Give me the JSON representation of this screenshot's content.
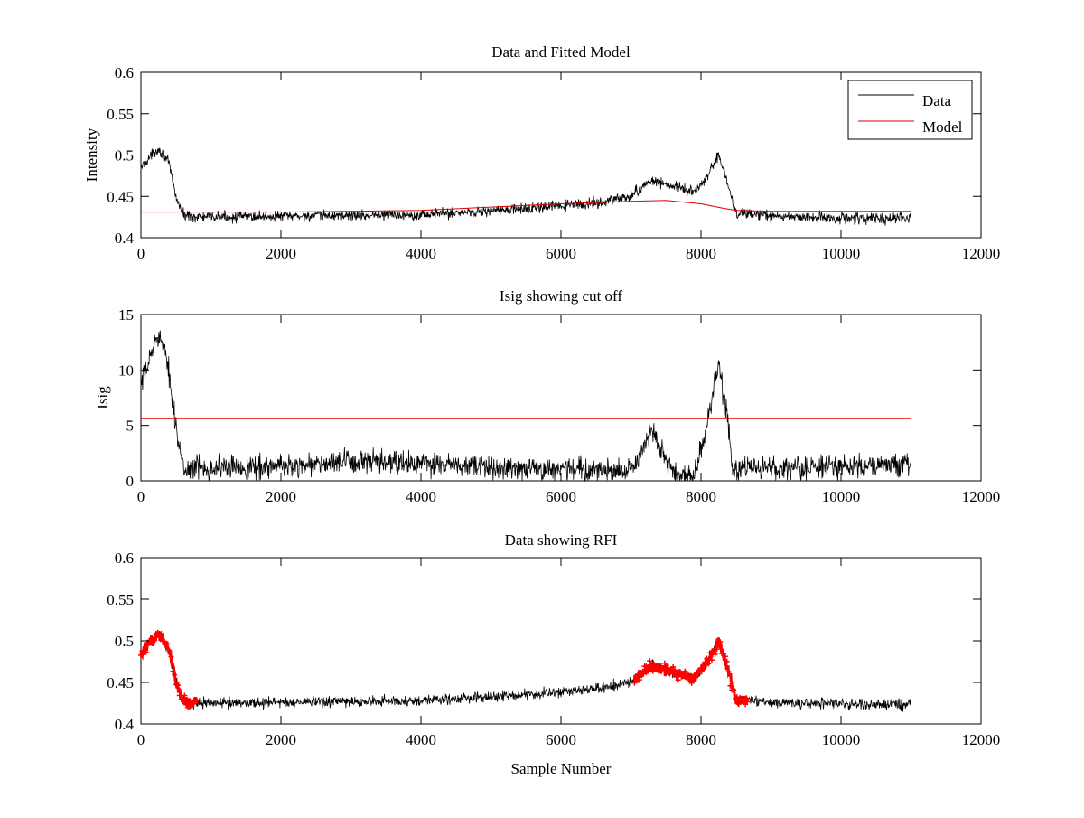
{
  "chart_data": [
    {
      "type": "line",
      "title": "Data and Fitted Model",
      "xlabel": "",
      "ylabel": "Intensity",
      "xlim": [
        0,
        12000
      ],
      "ylim": [
        0.4,
        0.6
      ],
      "xticks": [
        0,
        2000,
        4000,
        6000,
        8000,
        10000,
        12000
      ],
      "yticks": [
        0.4,
        0.45,
        0.5,
        0.55,
        0.6
      ],
      "xtick_labels": [
        "0",
        "2000",
        "4000",
        "6000",
        "8000",
        "10000",
        "12000"
      ],
      "ytick_labels": [
        "0.4",
        "0.45",
        "0.5",
        "0.55",
        "0.6"
      ],
      "grid": false,
      "legend": {
        "position": "top-right",
        "entries": [
          "Data",
          "Model"
        ]
      },
      "x_range": [
        0,
        11000
      ],
      "series": [
        {
          "name": "Data",
          "color": "#000000",
          "noise": 0.006,
          "x": [
            0,
            100,
            250,
            400,
            500,
            600,
            800,
            2000,
            4000,
            5500,
            6500,
            7000,
            7300,
            7600,
            7900,
            8100,
            8250,
            8400,
            8500,
            9000,
            10000,
            11000
          ],
          "y": [
            0.485,
            0.495,
            0.508,
            0.49,
            0.45,
            0.428,
            0.425,
            0.426,
            0.428,
            0.435,
            0.442,
            0.45,
            0.47,
            0.462,
            0.455,
            0.475,
            0.5,
            0.46,
            0.43,
            0.426,
            0.424,
            0.423
          ]
        },
        {
          "name": "Model",
          "color": "#dd0000",
          "noise": 0,
          "x": [
            0,
            500,
            1000,
            2000,
            3000,
            4000,
            5000,
            6000,
            7000,
            7500,
            8000,
            8300,
            8500,
            9000,
            10000,
            11000
          ],
          "y": [
            0.431,
            0.431,
            0.431,
            0.431,
            0.432,
            0.433,
            0.437,
            0.441,
            0.444,
            0.445,
            0.441,
            0.436,
            0.433,
            0.432,
            0.432,
            0.432
          ]
        }
      ]
    },
    {
      "type": "line",
      "title": "Isig showing cut off",
      "xlabel": "",
      "ylabel": "Isig",
      "xlim": [
        0,
        12000
      ],
      "ylim": [
        0,
        15
      ],
      "xticks": [
        0,
        2000,
        4000,
        6000,
        8000,
        10000,
        12000
      ],
      "yticks": [
        0,
        5,
        10,
        15
      ],
      "xtick_labels": [
        "0",
        "2000",
        "4000",
        "6000",
        "8000",
        "10000",
        "12000"
      ],
      "ytick_labels": [
        "0",
        "5",
        "10",
        "15"
      ],
      "grid": false,
      "x_range": [
        0,
        11000
      ],
      "series": [
        {
          "color": "#000000",
          "noise": 1.0,
          "x": [
            0,
            100,
            250,
            400,
            500,
            600,
            800,
            2000,
            3000,
            4000,
            5000,
            6000,
            7000,
            7150,
            7300,
            7450,
            7600,
            7900,
            8100,
            8250,
            8400,
            8450,
            8600,
            9000,
            10000,
            11000
          ],
          "y": [
            8.5,
            10.5,
            13.5,
            10.0,
            5.0,
            1.0,
            1.2,
            1.3,
            1.7,
            1.5,
            1.2,
            1.1,
            0.8,
            2.5,
            4.6,
            2.5,
            0.5,
            0.5,
            5.5,
            10.5,
            5.0,
            0.8,
            1.0,
            1.2,
            1.3,
            1.5
          ]
        },
        {
          "color": "#dd0000",
          "noise": 0,
          "x": [
            0,
            11000
          ],
          "y": [
            5.6,
            5.6
          ]
        }
      ]
    },
    {
      "type": "line",
      "title": "Data showing RFI",
      "xlabel": "Sample Number",
      "ylabel": "",
      "xlim": [
        0,
        12000
      ],
      "ylim": [
        0.4,
        0.6
      ],
      "xticks": [
        0,
        2000,
        4000,
        6000,
        8000,
        10000,
        12000
      ],
      "yticks": [
        0.4,
        0.45,
        0.5,
        0.55,
        0.6
      ],
      "xtick_labels": [
        "0",
        "2000",
        "4000",
        "6000",
        "8000",
        "10000",
        "12000"
      ],
      "ytick_labels": [
        "0.4",
        "0.45",
        "0.5",
        "0.55",
        "0.6"
      ],
      "grid": false,
      "x_range": [
        0,
        11000
      ],
      "series": [
        {
          "color": "#000000",
          "noise": 0.006,
          "x": [
            0,
            100,
            250,
            400,
            500,
            600,
            800,
            2000,
            4000,
            5500,
            6500,
            7000,
            7300,
            7600,
            7900,
            8100,
            8250,
            8400,
            8500,
            9000,
            10000,
            11000
          ],
          "y": [
            0.485,
            0.495,
            0.508,
            0.49,
            0.45,
            0.428,
            0.425,
            0.426,
            0.428,
            0.435,
            0.442,
            0.45,
            0.47,
            0.462,
            0.455,
            0.475,
            0.5,
            0.46,
            0.43,
            0.426,
            0.424,
            0.423
          ]
        }
      ],
      "highlight": {
        "color": "#ff0000",
        "marker": "+",
        "ranges": [
          [
            0,
            800
          ],
          [
            7050,
            8680
          ]
        ]
      }
    }
  ]
}
